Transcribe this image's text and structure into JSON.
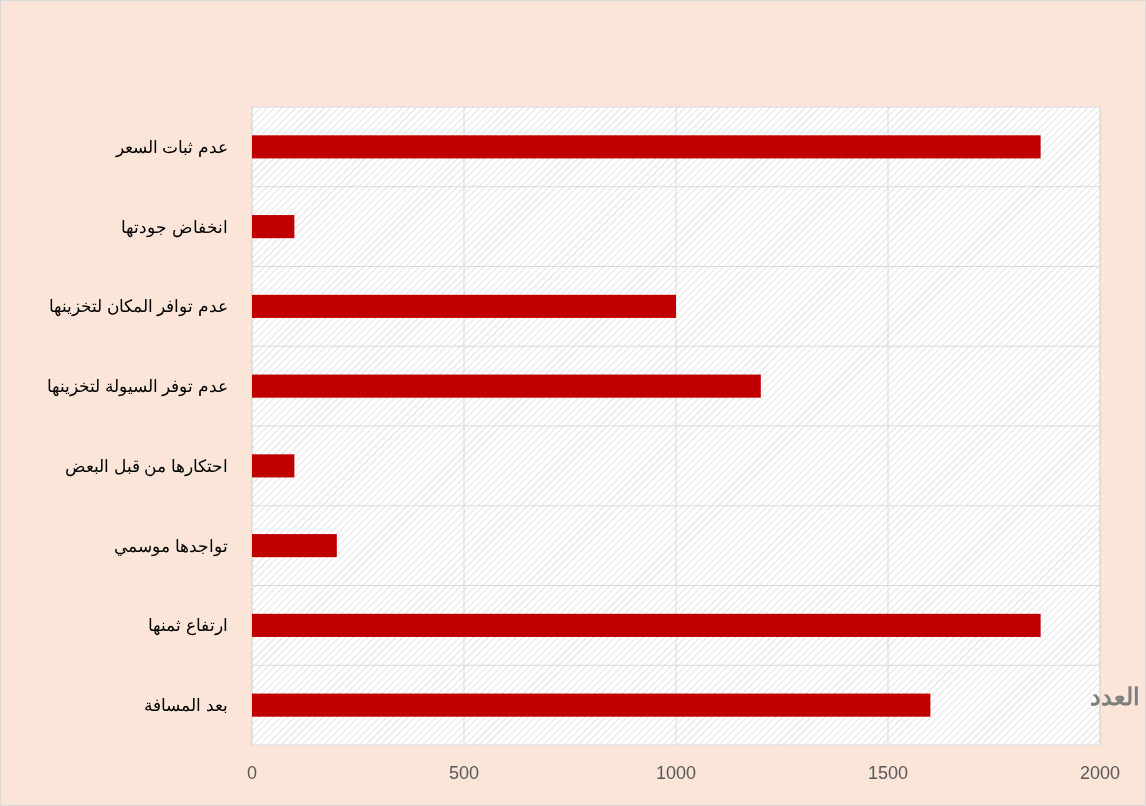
{
  "chart_data": {
    "type": "bar",
    "orientation": "horizontal",
    "xlabel": "العدد",
    "categories": [
      "عدم ثبات السعر",
      "انخفاض جودتها",
      "عدم توافر المكان لتخزينها",
      "عدم توفر السيولة لتخزينها",
      "احتكارها من قبل البعض",
      "تواجدها موسمي",
      "ارتفاع ثمنها",
      "بعد المسافة"
    ],
    "values": [
      1860,
      100,
      1000,
      1200,
      100,
      200,
      1860,
      1600
    ],
    "color": "#c00000",
    "xlim": [
      0,
      2000
    ],
    "xticks": [
      0,
      500,
      1000,
      1500,
      2000
    ],
    "grid": true
  }
}
